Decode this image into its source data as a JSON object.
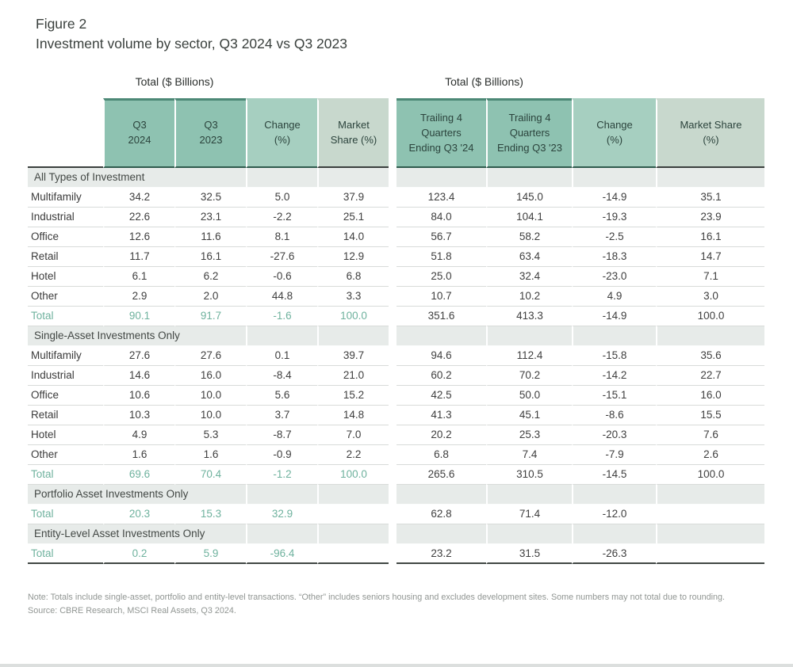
{
  "title": {
    "figure_label": "Figure 2",
    "figure_title": "Investment volume by sector, Q3 2024 vs Q3 2023"
  },
  "colors": {
    "header_dark": "#8ec2b1",
    "header_dark_topline": "#4c8876",
    "header_mid": "#a6cfc0",
    "header_light": "#c8d8cd",
    "header_text": "#2b433c",
    "section_row_bg": "#e7ebe9",
    "total_row_text": "#6fb29e",
    "body_text": "#3f3f3f",
    "note_text": "#919693"
  },
  "chart_data": [
    {
      "id": "quarterly",
      "type": "table",
      "caption": "Total ($ Billions)",
      "columns": [
        "Q3\n2024",
        "Q3\n2023",
        "Change\n(%)",
        "Market\nShare (%)"
      ],
      "rows": [
        {
          "kind": "section",
          "label": "All Types of Investment"
        },
        {
          "kind": "data",
          "label": "Multifamily",
          "values": [
            "34.2",
            "32.5",
            "5.0",
            "37.9"
          ]
        },
        {
          "kind": "data",
          "label": "Industrial",
          "values": [
            "22.6",
            "23.1",
            "-2.2",
            "25.1"
          ]
        },
        {
          "kind": "data",
          "label": "Office",
          "values": [
            "12.6",
            "11.6",
            "8.1",
            "14.0"
          ]
        },
        {
          "kind": "data",
          "label": "Retail",
          "values": [
            "11.7",
            "16.1",
            "-27.6",
            "12.9"
          ]
        },
        {
          "kind": "data",
          "label": "Hotel",
          "values": [
            "6.1",
            "6.2",
            "-0.6",
            "6.8"
          ]
        },
        {
          "kind": "data",
          "label": "Other",
          "values": [
            "2.9",
            "2.0",
            "44.8",
            "3.3"
          ]
        },
        {
          "kind": "total",
          "label": "Total",
          "values": [
            "90.1",
            "91.7",
            "-1.6",
            "100.0"
          ]
        },
        {
          "kind": "section",
          "label": "Single-Asset Investments Only"
        },
        {
          "kind": "data",
          "label": "Multifamily",
          "values": [
            "27.6",
            "27.6",
            "0.1",
            "39.7"
          ]
        },
        {
          "kind": "data",
          "label": "Industrial",
          "values": [
            "14.6",
            "16.0",
            "-8.4",
            "21.0"
          ]
        },
        {
          "kind": "data",
          "label": "Office",
          "values": [
            "10.6",
            "10.0",
            "5.6",
            "15.2"
          ]
        },
        {
          "kind": "data",
          "label": "Retail",
          "values": [
            "10.3",
            "10.0",
            "3.7",
            "14.8"
          ]
        },
        {
          "kind": "data",
          "label": "Hotel",
          "values": [
            "4.9",
            "5.3",
            "-8.7",
            "7.0"
          ]
        },
        {
          "kind": "data",
          "label": "Other",
          "values": [
            "1.6",
            "1.6",
            "-0.9",
            "2.2"
          ]
        },
        {
          "kind": "total",
          "label": "Total",
          "values": [
            "69.6",
            "70.4",
            "-1.2",
            "100.0"
          ]
        },
        {
          "kind": "section",
          "label": "Portfolio Asset Investments Only"
        },
        {
          "kind": "total",
          "label": "Total",
          "values": [
            "20.3",
            "15.3",
            "32.9",
            ""
          ]
        },
        {
          "kind": "section",
          "label": "Entity-Level Asset Investments Only"
        },
        {
          "kind": "total",
          "label": "Total",
          "values": [
            "0.2",
            "5.9",
            "-96.4",
            ""
          ]
        }
      ]
    },
    {
      "id": "trailing",
      "type": "table",
      "caption": "Total ($ Billions)",
      "columns": [
        "Trailing 4\nQuarters\nEnding Q3 '24",
        "Trailing 4\nQuarters\nEnding Q3 '23",
        "Change\n(%)",
        "Market Share\n(%)"
      ],
      "rows": [
        {
          "kind": "section",
          "label": ""
        },
        {
          "kind": "data",
          "values": [
            "123.4",
            "145.0",
            "-14.9",
            "35.1"
          ]
        },
        {
          "kind": "data",
          "values": [
            "84.0",
            "104.1",
            "-19.3",
            "23.9"
          ]
        },
        {
          "kind": "data",
          "values": [
            "56.7",
            "58.2",
            "-2.5",
            "16.1"
          ]
        },
        {
          "kind": "data",
          "values": [
            "51.8",
            "63.4",
            "-18.3",
            "14.7"
          ]
        },
        {
          "kind": "data",
          "values": [
            "25.0",
            "32.4",
            "-23.0",
            "7.1"
          ]
        },
        {
          "kind": "data",
          "values": [
            "10.7",
            "10.2",
            "4.9",
            "3.0"
          ]
        },
        {
          "kind": "total_plain",
          "values": [
            "351.6",
            "413.3",
            "-14.9",
            "100.0"
          ]
        },
        {
          "kind": "section",
          "label": ""
        },
        {
          "kind": "data",
          "values": [
            "94.6",
            "112.4",
            "-15.8",
            "35.6"
          ]
        },
        {
          "kind": "data",
          "values": [
            "60.2",
            "70.2",
            "-14.2",
            "22.7"
          ]
        },
        {
          "kind": "data",
          "values": [
            "42.5",
            "50.0",
            "-15.1",
            "16.0"
          ]
        },
        {
          "kind": "data",
          "values": [
            "41.3",
            "45.1",
            "-8.6",
            "15.5"
          ]
        },
        {
          "kind": "data",
          "values": [
            "20.2",
            "25.3",
            "-20.3",
            "7.6"
          ]
        },
        {
          "kind": "data",
          "values": [
            "6.8",
            "7.4",
            "-7.9",
            "2.6"
          ]
        },
        {
          "kind": "total_plain",
          "values": [
            "265.6",
            "310.5",
            "-14.5",
            "100.0"
          ]
        },
        {
          "kind": "section",
          "label": ""
        },
        {
          "kind": "total_plain",
          "values": [
            "62.8",
            "71.4",
            "-12.0",
            ""
          ]
        },
        {
          "kind": "section",
          "label": ""
        },
        {
          "kind": "total_plain",
          "values": [
            "23.2",
            "31.5",
            "-26.3",
            ""
          ]
        }
      ]
    }
  ],
  "notes": {
    "note": "Note: Totals include single-asset, portfolio and entity-level transactions. “Other” includes seniors housing and excludes development sites. Some numbers may not total due to rounding.",
    "source": "Source: CBRE Research, MSCI Real Assets, Q3 2024."
  }
}
